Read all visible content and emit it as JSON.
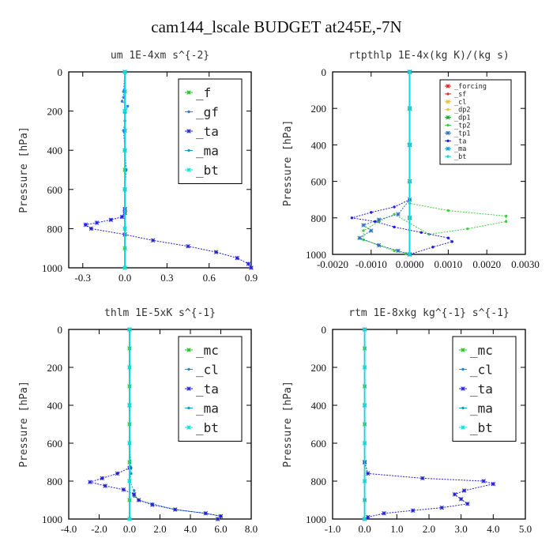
{
  "figure_title": "cam144_lscale  BUDGET at245E,-7N",
  "colors": {
    "forcing": "#d62020",
    "sf": "#e03030",
    "f": "#22c020",
    "gf": "#2080ff",
    "ta": "#2020d0",
    "ma": "#10a0c0",
    "bt": "#00e0e0",
    "cl": "#2a8acc",
    "dp2": "#e8c040",
    "dp1": "#30a030",
    "tp2": "#40d040",
    "tp1": "#3070c0",
    "mc": "#22c020"
  },
  "chart_data": [
    {
      "type": "line",
      "title": "um   1E-4xm  s^{-2}",
      "ylabel": "Pressure [hPa]",
      "xlim": [
        -0.4,
        0.9
      ],
      "ylim": [
        0,
        1000
      ],
      "y_inverted": true,
      "xticks": [
        -0.3,
        0.0,
        0.3,
        0.6,
        0.9
      ],
      "xtick_labels": [
        "-0.3",
        "0.0",
        "0.3",
        "0.6",
        "0.9"
      ],
      "yticks": [
        0,
        200,
        400,
        600,
        800,
        1000
      ],
      "ytick_labels": [
        "0",
        "200",
        "400",
        "600",
        "800",
        "1000"
      ],
      "legend": "top-right",
      "legend_size": "large",
      "series": [
        {
          "name": "_f",
          "key": "f",
          "x": [
            0,
            0,
            0,
            0,
            0,
            0,
            0,
            0,
            0,
            0,
            0
          ],
          "y": [
            0,
            100,
            200,
            300,
            400,
            500,
            600,
            700,
            800,
            900,
            1000
          ]
        },
        {
          "name": "_gf",
          "key": "gf",
          "x": [
            0.0,
            -0.01,
            -0.01,
            -0.02,
            0.02,
            0.0,
            0.0,
            -0.01,
            0.0,
            0.01,
            0.0,
            0.0,
            0.0
          ],
          "y": [
            0,
            100,
            130,
            150,
            175,
            210,
            250,
            300,
            400,
            500,
            600,
            700,
            1000
          ]
        },
        {
          "name": "_ta",
          "key": "ta",
          "x": [
            0.0,
            0.0,
            0.0,
            0.0,
            0.0,
            0.0,
            -0.02,
            -0.1,
            -0.2,
            -0.28,
            -0.24,
            0.0,
            0.2,
            0.45,
            0.65,
            0.8,
            0.88,
            0.9
          ],
          "y": [
            0,
            200,
            400,
            600,
            700,
            720,
            740,
            755,
            770,
            780,
            800,
            830,
            860,
            890,
            920,
            950,
            980,
            1000
          ]
        },
        {
          "name": "_ma",
          "key": "ma",
          "x": [
            0,
            0,
            0,
            0,
            0,
            0
          ],
          "y": [
            0,
            200,
            400,
            600,
            800,
            1000
          ]
        },
        {
          "name": "_bt",
          "key": "bt",
          "x": [
            0,
            0,
            0,
            0,
            0,
            0
          ],
          "y": [
            0,
            200,
            400,
            600,
            800,
            1000
          ]
        }
      ]
    },
    {
      "type": "line",
      "title": "rtpthlp   1E-4x(kg K)/(kg s)",
      "ylabel": "Pressure [hPa]",
      "xlim": [
        -0.002,
        0.003
      ],
      "ylim": [
        0,
        1000
      ],
      "y_inverted": true,
      "xticks": [
        -0.002,
        -0.001,
        0.0,
        0.001,
        0.002,
        0.003
      ],
      "xtick_labels": [
        "-0.0020",
        "-0.0010",
        "0.0000",
        "0.0010",
        "0.0020",
        "0.0030"
      ],
      "yticks": [
        0,
        200,
        400,
        600,
        800,
        1000
      ],
      "ytick_labels": [
        "0",
        "200",
        "400",
        "600",
        "800",
        "1000"
      ],
      "legend": "top-right",
      "legend_size": "small",
      "series": [
        {
          "name": "_forcing",
          "key": "forcing",
          "x": [
            0,
            0,
            0,
            0,
            0,
            0
          ],
          "y": [
            0,
            200,
            400,
            600,
            800,
            1000
          ]
        },
        {
          "name": "_sf",
          "key": "sf",
          "x": [
            0,
            0,
            0,
            0,
            0,
            0
          ],
          "y": [
            0,
            200,
            400,
            600,
            800,
            1000
          ]
        },
        {
          "name": "_cl",
          "key": "dp2",
          "x": [
            0,
            0,
            0,
            0,
            0,
            0
          ],
          "y": [
            0,
            200,
            400,
            600,
            800,
            1000
          ]
        },
        {
          "name": "_dp2",
          "key": "dp2",
          "x": [
            0,
            0,
            0,
            0,
            0,
            0
          ],
          "y": [
            0,
            200,
            400,
            600,
            800,
            1000
          ]
        },
        {
          "name": "_dp1",
          "key": "dp1",
          "x": [
            0,
            0,
            0,
            0,
            0,
            0
          ],
          "y": [
            0,
            200,
            400,
            600,
            800,
            1000
          ]
        },
        {
          "name": "_tp2",
          "key": "tp2",
          "x": [
            0.0,
            0.0,
            0.0,
            0.0,
            0.0,
            0.001,
            0.0025,
            0.0025,
            0.0015,
            0.0005,
            -0.0004,
            -0.0008,
            -0.0012,
            -0.0012,
            -0.0008,
            -0.0004,
            -0.0001,
            0.0
          ],
          "y": [
            0,
            200,
            400,
            600,
            720,
            760,
            790,
            820,
            860,
            890,
            780,
            820,
            870,
            920,
            950,
            980,
            995,
            1000
          ]
        },
        {
          "name": "_tp1",
          "key": "tp1",
          "x": [
            0.0,
            0.0,
            0.0,
            -0.0003,
            -0.0008,
            -0.0012,
            -0.001,
            -0.0013,
            -0.0008,
            -0.0003,
            0.0
          ],
          "y": [
            0,
            400,
            700,
            780,
            810,
            840,
            870,
            910,
            950,
            980,
            1000
          ]
        },
        {
          "name": "_ta",
          "key": "ta",
          "x": [
            0.0,
            0.0,
            0.0,
            -0.0004,
            -0.001,
            -0.0015,
            -0.0009,
            -0.0004,
            0.0003,
            0.001,
            0.0011,
            0.0006,
            0.0
          ],
          "y": [
            0,
            400,
            700,
            740,
            770,
            800,
            820,
            850,
            880,
            910,
            930,
            960,
            1000
          ]
        },
        {
          "name": "_ma",
          "key": "ma",
          "x": [
            0,
            0,
            0,
            0,
            0,
            0
          ],
          "y": [
            0,
            200,
            400,
            600,
            800,
            1000
          ]
        },
        {
          "name": "_bt",
          "key": "bt",
          "x": [
            0,
            0,
            0,
            0,
            0,
            0
          ],
          "y": [
            0,
            200,
            400,
            600,
            800,
            1000
          ]
        }
      ]
    },
    {
      "type": "line",
      "title": "thlm   1E-5xK  s^{-1}",
      "ylabel": "Pressure [hPa]",
      "xlim": [
        -4.0,
        8.0
      ],
      "ylim": [
        0,
        1000
      ],
      "y_inverted": true,
      "xticks": [
        -4.0,
        -2.0,
        0.0,
        2.0,
        4.0,
        6.0,
        8.0
      ],
      "xtick_labels": [
        "-4.0",
        "-2.0",
        "0.0",
        "2.0",
        "4.0",
        "6.0",
        "8.0"
      ],
      "yticks": [
        0,
        200,
        400,
        600,
        800,
        1000
      ],
      "ytick_labels": [
        "0",
        "200",
        "400",
        "600",
        "800",
        "1000"
      ],
      "legend": "top-right",
      "legend_size": "large",
      "series": [
        {
          "name": "_mc",
          "key": "mc",
          "x": [
            0,
            0,
            0,
            0,
            0,
            0,
            0,
            0,
            0,
            0,
            0
          ],
          "y": [
            0,
            100,
            200,
            300,
            400,
            500,
            600,
            700,
            800,
            900,
            1000
          ]
        },
        {
          "name": "_cl",
          "key": "cl",
          "x": [
            0.0,
            0.0,
            0.0,
            0.0,
            0.1,
            0.1,
            0.0,
            0.3,
            0.3,
            0.6,
            1.5,
            3.0,
            5.0,
            6.0,
            5.8
          ],
          "y": [
            0,
            200,
            400,
            600,
            730,
            760,
            800,
            850,
            880,
            900,
            920,
            950,
            970,
            985,
            1000
          ]
        },
        {
          "name": "_ta",
          "key": "ta",
          "x": [
            0.0,
            0.0,
            0.0,
            -0.8,
            -1.8,
            -2.6,
            -1.6,
            -0.4,
            0.3,
            0.6,
            1.5,
            3.0,
            5.0,
            6.0,
            5.8
          ],
          "y": [
            0,
            400,
            730,
            760,
            785,
            805,
            825,
            845,
            870,
            900,
            925,
            950,
            970,
            985,
            1000
          ]
        },
        {
          "name": "_ma",
          "key": "ma",
          "x": [
            0,
            0,
            0,
            0,
            0,
            0
          ],
          "y": [
            0,
            200,
            400,
            600,
            800,
            1000
          ]
        },
        {
          "name": "_bt",
          "key": "bt",
          "x": [
            0,
            0,
            0,
            0,
            0,
            0
          ],
          "y": [
            0,
            200,
            400,
            600,
            800,
            1000
          ]
        }
      ]
    },
    {
      "type": "line",
      "title": "rtm   1E-8xkg  kg^{-1}  s^{-1}",
      "ylabel": "Pressure [hPa]",
      "xlim": [
        -1.0,
        5.0
      ],
      "ylim": [
        0,
        1000
      ],
      "y_inverted": true,
      "xticks": [
        -1.0,
        0.0,
        1.0,
        2.0,
        3.0,
        4.0,
        5.0
      ],
      "xtick_labels": [
        "-1.0",
        "0.0",
        "1.0",
        "2.0",
        "3.0",
        "4.0",
        "5.0"
      ],
      "yticks": [
        0,
        200,
        400,
        600,
        800,
        1000
      ],
      "ytick_labels": [
        "0",
        "200",
        "400",
        "600",
        "800",
        "1000"
      ],
      "legend": "top-right",
      "legend_size": "large",
      "series": [
        {
          "name": "_mc",
          "key": "mc",
          "x": [
            0,
            0,
            0,
            0,
            0,
            0,
            0,
            0,
            0,
            0,
            0
          ],
          "y": [
            0,
            100,
            200,
            300,
            400,
            500,
            600,
            700,
            800,
            900,
            1000
          ]
        },
        {
          "name": "_cl",
          "key": "cl",
          "x": [
            0,
            0,
            0,
            0,
            0,
            0,
            0
          ],
          "y": [
            0,
            200,
            400,
            600,
            800,
            900,
            1000
          ]
        },
        {
          "name": "_ta",
          "key": "ta",
          "x": [
            0.0,
            0.0,
            0.0,
            0.1,
            1.8,
            3.7,
            4.0,
            3.1,
            2.8,
            3.0,
            3.2,
            2.4,
            1.5,
            0.6,
            0.1,
            0.0
          ],
          "y": [
            0,
            400,
            700,
            760,
            785,
            800,
            815,
            850,
            870,
            895,
            920,
            940,
            955,
            970,
            990,
            1000
          ]
        },
        {
          "name": "_ma",
          "key": "ma",
          "x": [
            0,
            0,
            0,
            0,
            0,
            0
          ],
          "y": [
            0,
            200,
            400,
            600,
            800,
            1000
          ]
        },
        {
          "name": "_bt",
          "key": "bt",
          "x": [
            0,
            0,
            0,
            0,
            0,
            0
          ],
          "y": [
            0,
            200,
            400,
            600,
            800,
            1000
          ]
        }
      ]
    }
  ]
}
